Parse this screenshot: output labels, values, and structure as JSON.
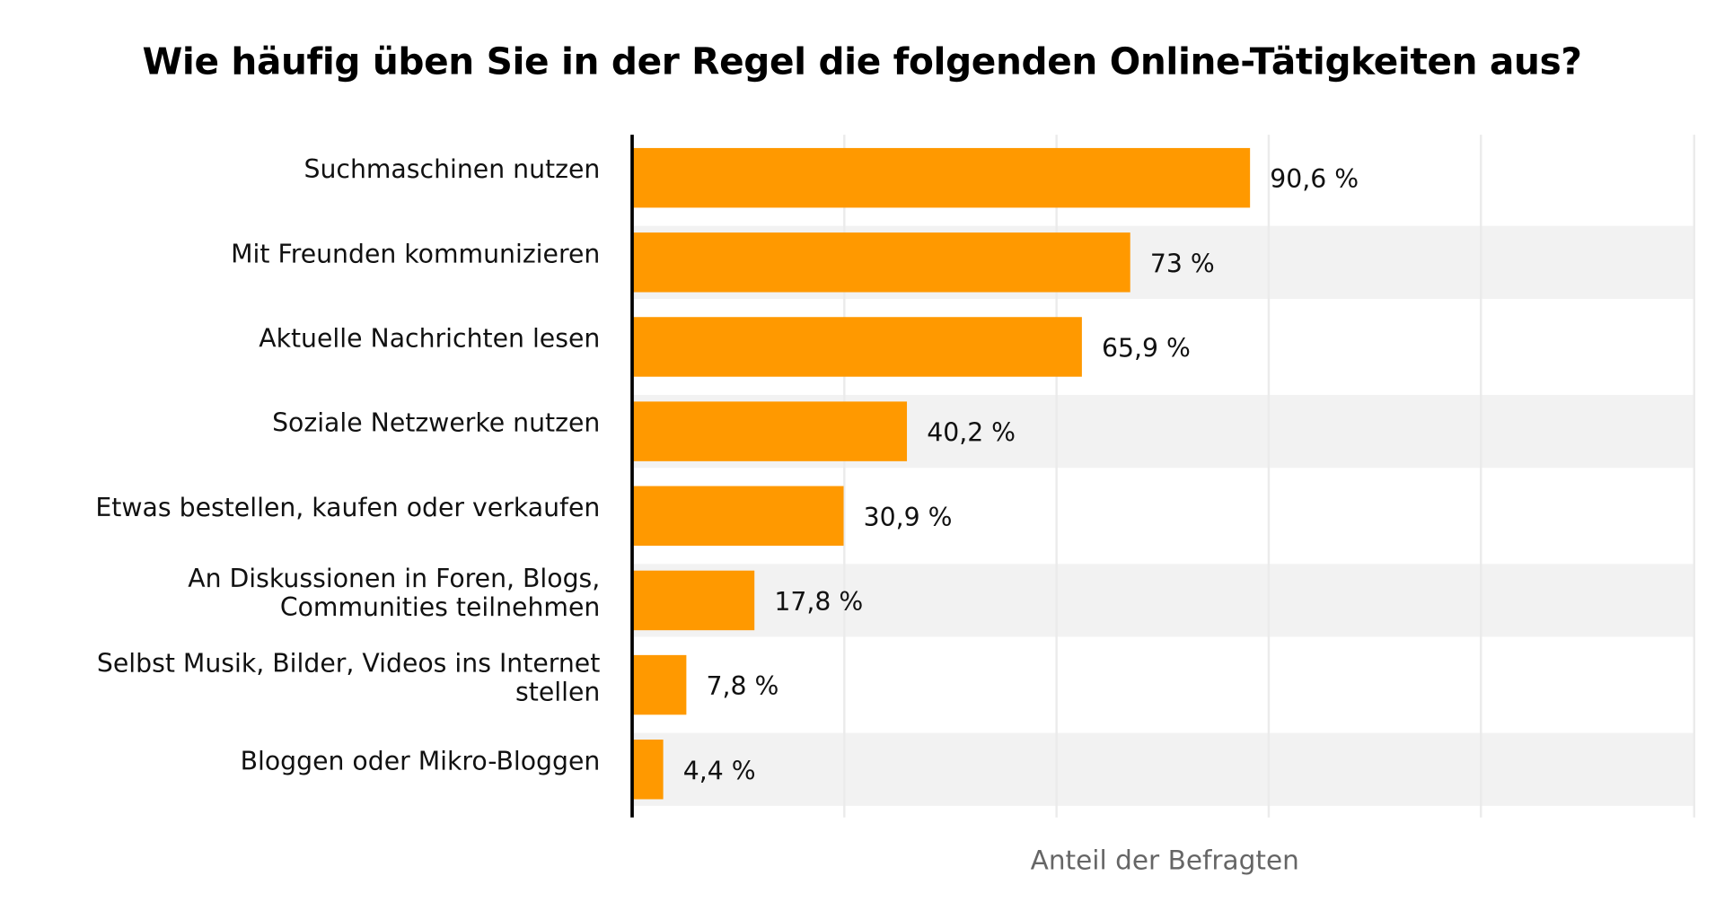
{
  "chart_data": {
    "type": "bar",
    "orientation": "horizontal",
    "title": "Wie häufig üben Sie in der Regel die folgenden Online-Tätigkeiten aus?",
    "xlabel": "Anteil der Befragten",
    "ylabel": "",
    "categories": [
      [
        "Suchmaschinen nutzen"
      ],
      [
        "Mit Freunden kommunizieren"
      ],
      [
        "Aktuelle Nachrichten lesen"
      ],
      [
        "Soziale Netzwerke nutzen"
      ],
      [
        "Etwas bestellen, kaufen oder verkaufen"
      ],
      [
        "An Diskussionen in Foren, Blogs,",
        "Communities teilnehmen"
      ],
      [
        "Selbst Musik, Bilder, Videos ins Internet",
        "stellen"
      ],
      [
        "Bloggen oder Mikro-Bloggen"
      ]
    ],
    "values": [
      90.6,
      73,
      65.9,
      40.2,
      30.9,
      17.8,
      7.8,
      4.4
    ],
    "value_labels": [
      "90,6 %",
      "73 %",
      "65,9 %",
      "40,2 %",
      "30,9 %",
      "17,8 %",
      "7,8 %",
      "4,4 %"
    ],
    "unit": "%",
    "grid": true,
    "bar_color": "#FF9900",
    "band_color": "#F2F2F2"
  }
}
